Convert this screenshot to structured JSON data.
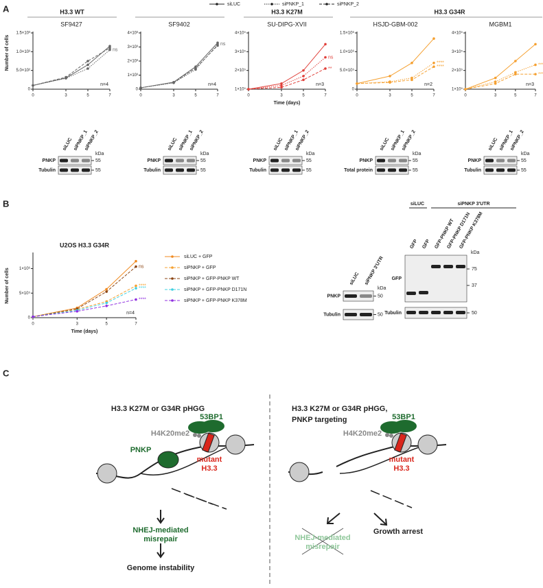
{
  "chart_data": [
    {
      "type": "line",
      "title": "SF9427",
      "ylabel": "Number of cells",
      "x": [
        0,
        3,
        5,
        7
      ],
      "xlim": [
        0,
        7
      ],
      "xticks": [
        0,
        3,
        5,
        7
      ],
      "ylim": [
        0,
        1500
      ],
      "yticks": [
        0,
        {
          "value": 500,
          "label": "5.0×10²"
        },
        {
          "value": 1000,
          "label": "1.0×10³"
        },
        {
          "value": 1500,
          "label": "1.5×10³"
        }
      ],
      "n_label": "n=4",
      "series": [
        {
          "name": "siLUC",
          "color": "#666666",
          "dash": "solid",
          "values": [
            100,
            300,
            650,
            1150
          ]
        },
        {
          "name": "siPNKP_1",
          "color": "#666666",
          "dash": "dotted",
          "values": [
            100,
            290,
            550,
            1050
          ],
          "annotation": "ns"
        },
        {
          "name": "siPNKP_2",
          "color": "#666666",
          "dash": "dashed",
          "values": [
            100,
            320,
            750,
            1100
          ]
        }
      ]
    },
    {
      "type": "line",
      "title": "SF9402",
      "x": [
        0,
        3,
        5,
        7
      ],
      "xlim": [
        0,
        7
      ],
      "xticks": [
        0,
        3,
        5,
        7
      ],
      "ylim": [
        0,
        4000
      ],
      "yticks": [
        0,
        {
          "value": 1000,
          "label": "1×10³"
        },
        {
          "value": 2000,
          "label": "2×10³"
        },
        {
          "value": 3000,
          "label": "3×10³"
        },
        {
          "value": 4000,
          "label": "4×10³"
        }
      ],
      "n_label": "n=4",
      "series": [
        {
          "name": "siLUC",
          "color": "#666666",
          "dash": "solid",
          "values": [
            100,
            500,
            1600,
            3300
          ]
        },
        {
          "name": "siPNKP_1",
          "color": "#666666",
          "dash": "dotted",
          "values": [
            100,
            450,
            1400,
            3200
          ],
          "annotation": "ns"
        },
        {
          "name": "siPNKP_2",
          "color": "#666666",
          "dash": "dashed",
          "values": [
            100,
            480,
            1500,
            3100
          ]
        }
      ]
    },
    {
      "type": "line",
      "title": "SU-DIPG-XVII",
      "xlabel": "Time (days)",
      "x": [
        0,
        3,
        5,
        7
      ],
      "xlim": [
        0,
        7
      ],
      "xticks": [
        0,
        3,
        5,
        7
      ],
      "ylim": [
        100000,
        400000
      ],
      "yticks": [
        {
          "value": 100000,
          "label": "1×10⁵"
        },
        {
          "value": 200000,
          "label": "2×10⁵"
        },
        {
          "value": 300000,
          "label": "3×10⁵"
        },
        {
          "value": 400000,
          "label": "4×10⁵"
        }
      ],
      "n_label": "n=3",
      "series": [
        {
          "name": "siLUC",
          "color": "#e0403a",
          "dash": "solid",
          "values": [
            100000,
            130000,
            200000,
            340000
          ]
        },
        {
          "name": "siPNKP_1",
          "color": "#e0403a",
          "dash": "dotted",
          "values": [
            100000,
            120000,
            170000,
            270000
          ],
          "annotation": "ns"
        },
        {
          "name": "siPNKP_2",
          "color": "#e0403a",
          "dash": "dashed",
          "values": [
            100000,
            110000,
            150000,
            210000
          ],
          "annotation": "**"
        }
      ]
    },
    {
      "type": "line",
      "title": "HSJD-GBM-002",
      "x": [
        0,
        3,
        5,
        7
      ],
      "xlim": [
        0,
        7
      ],
      "xticks": [
        0,
        3,
        5,
        7
      ],
      "ylim": [
        0,
        1500000
      ],
      "yticks": [
        0,
        {
          "value": 500000,
          "label": "5.0×10⁵"
        },
        {
          "value": 1000000,
          "label": "1.0×10⁶"
        },
        {
          "value": 1500000,
          "label": "1.5×10⁶"
        }
      ],
      "n_label": "n=2",
      "series": [
        {
          "name": "siLUC",
          "color": "#f5a030",
          "dash": "solid",
          "values": [
            150000,
            350000,
            700000,
            1350000
          ]
        },
        {
          "name": "siPNKP_1",
          "color": "#f5a030",
          "dash": "dotted",
          "values": [
            150000,
            200000,
            300000,
            700000
          ],
          "annotation": "****"
        },
        {
          "name": "siPNKP_2",
          "color": "#f5a030",
          "dash": "dashed",
          "values": [
            150000,
            180000,
            250000,
            600000
          ],
          "annotation": "****"
        }
      ]
    },
    {
      "type": "line",
      "title": "MGBM1",
      "x": [
        0,
        3,
        5,
        7
      ],
      "xlim": [
        0,
        7
      ],
      "xticks": [
        0,
        3,
        5,
        7
      ],
      "ylim": [
        100000,
        400000
      ],
      "yticks": [
        {
          "value": 100000,
          "label": "1×10⁵"
        },
        {
          "value": 200000,
          "label": "2×10⁵"
        },
        {
          "value": 300000,
          "label": "3×10⁵"
        },
        {
          "value": 400000,
          "label": "4×10⁵"
        }
      ],
      "n_label": "n=3",
      "series": [
        {
          "name": "siLUC",
          "color": "#f5a030",
          "dash": "solid",
          "values": [
            100000,
            160000,
            250000,
            340000
          ]
        },
        {
          "name": "siPNKP_1",
          "color": "#f5a030",
          "dash": "dotted",
          "values": [
            100000,
            140000,
            190000,
            230000
          ],
          "annotation": "****"
        },
        {
          "name": "siPNKP_2",
          "color": "#f5a030",
          "dash": "dashed",
          "values": [
            100000,
            130000,
            180000,
            180000
          ],
          "annotation": "****"
        }
      ]
    },
    {
      "type": "line",
      "title": "U2OS H3.3 G34R",
      "xlabel": "Time (days)",
      "ylabel": "Number of cells",
      "x": [
        0,
        3,
        5,
        7
      ],
      "xlim": [
        0,
        7
      ],
      "xticks": [
        0,
        3,
        5,
        7
      ],
      "ylim": [
        0,
        1300000
      ],
      "yticks": [
        0,
        {
          "value": 500000,
          "label": "5×10⁵"
        },
        {
          "value": 1000000,
          "label": "1×10⁶"
        }
      ],
      "n_label": "n=4",
      "series": [
        {
          "name": "siLUC + GFP",
          "color": "#f08a20",
          "dash": "solid",
          "values": [
            20000,
            200000,
            580000,
            1150000
          ]
        },
        {
          "name": "siPNKP + GFP",
          "color": "#f5a030",
          "dash": "dashed",
          "values": [
            20000,
            170000,
            330000,
            650000
          ],
          "annotation": "****"
        },
        {
          "name": "siPNKP + GFP-PNKP WT",
          "color": "#8b4513",
          "dash": "dashed",
          "values": [
            20000,
            180000,
            530000,
            1040000
          ],
          "annotation": "ns"
        },
        {
          "name": "siPNKP + GFP-PNKP D171N",
          "color": "#40d0e0",
          "dash": "dashed",
          "values": [
            20000,
            150000,
            300000,
            600000
          ],
          "annotation": "****"
        },
        {
          "name": "siPNKP + GFP-PNKP K378M",
          "color": "#9030e0",
          "dash": "dashed",
          "values": [
            20000,
            130000,
            240000,
            370000
          ],
          "annotation": "****"
        }
      ]
    }
  ],
  "panels": {
    "A": {
      "letter": "A",
      "groups": [
        "H3.3 WT",
        "H3.3 K27M",
        "H3.3 G34R"
      ],
      "blots": [
        {
          "lanes": [
            "siLUC",
            "siPNKP_1",
            "siPNKP_2"
          ],
          "unit": "kDa",
          "rows": [
            "PNKP",
            "Tubulin"
          ],
          "markers": [
            "55",
            "55"
          ]
        },
        {
          "lanes": [
            "siLUC",
            "siPNKP_1",
            "siPNKP_2"
          ],
          "unit": "kDa",
          "rows": [
            "PNKP",
            "Tubulin"
          ],
          "markers": [
            "55",
            "55"
          ]
        },
        {
          "lanes": [
            "siLUC",
            "siPNKP_1",
            "siPNKP_2"
          ],
          "unit": "kDa",
          "rows": [
            "PNKP",
            "Tubulin"
          ],
          "markers": [
            "55",
            "55"
          ]
        },
        {
          "lanes": [
            "siLUC",
            "siPNKP_1",
            "siPNKP_2"
          ],
          "unit": "kDa",
          "rows": [
            "PNKP",
            "Total protein"
          ],
          "markers": [
            "55",
            "55"
          ]
        },
        {
          "lanes": [
            "siLUC",
            "siPNKP_1",
            "siPNKP_2"
          ],
          "unit": "kDa",
          "rows": [
            "PNKP",
            "Tubulin"
          ],
          "markers": [
            "55",
            "55"
          ]
        }
      ]
    },
    "B": {
      "letter": "B",
      "blot1": {
        "lanes": [
          "siLUC",
          "siPNKP 3'UTR"
        ],
        "unit": "kDa",
        "rows": [
          "PNKP",
          "Tubulin"
        ],
        "markers": [
          "50",
          "50"
        ]
      },
      "blot2": {
        "groups": [
          "siLUC",
          "siPNKP 3'UTR"
        ],
        "lanes": [
          "GFP",
          "GFP",
          "GFP-PNKP WT",
          "GFP-PNKP D171N",
          "GFP-PNKP K378M"
        ],
        "unit": "kDa",
        "rows": [
          "GFP",
          "Tubulin"
        ],
        "markers": [
          "75",
          "37",
          "50"
        ]
      }
    },
    "C": {
      "letter": "C",
      "left": {
        "title": "H3.3 K27M or G34R pHGG",
        "bp": "53BP1",
        "mark": "H4K20me2",
        "pnkp": "PNKP",
        "mutant": "mutant",
        "h33": "H3.3",
        "outcome1": "NHEJ-mediated",
        "outcome2": "misrepair",
        "final": "Genome instability"
      },
      "right": {
        "title1": "H3.3 K27M or G34R pHGG,",
        "title2": "PNKP targeting",
        "bp": "53BP1",
        "mark": "H4K20me2",
        "mutant": "mutant",
        "h33": "H3.3",
        "outcome1": "NHEJ-mediated",
        "outcome2": "misrepair",
        "final": "Growth arrest"
      }
    }
  }
}
